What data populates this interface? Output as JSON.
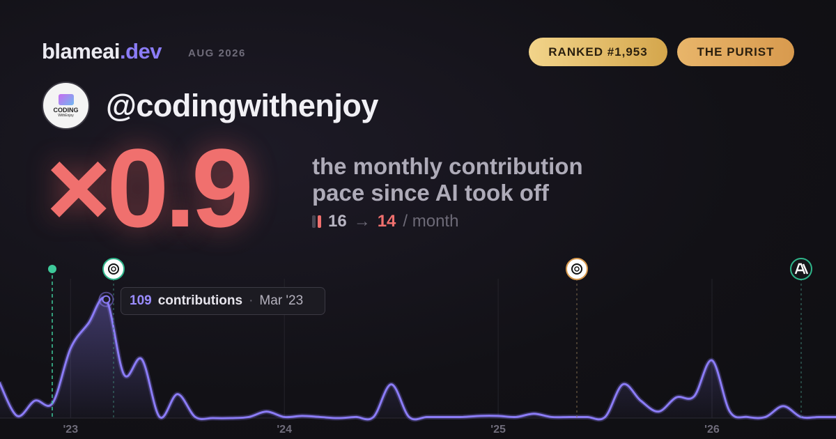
{
  "header": {
    "brand": "blameai",
    "brand_suffix": ".dev",
    "date": "AUG 2026",
    "badges": [
      "RANKED #1,953",
      "THE PURIST"
    ]
  },
  "profile": {
    "handle": "@codingwithenjoy",
    "avatar_text": [
      "CODING",
      "WithEnjoy"
    ]
  },
  "headline": {
    "multiplier": "×0.9",
    "description": [
      "the monthly contribution",
      "pace since AI took off"
    ],
    "before": "16",
    "arrow": "→",
    "after": "14",
    "unit": "/ month"
  },
  "tooltip": {
    "unit": "contributions",
    "separator": "·",
    "label": "Mar '23"
  },
  "chart_data": {
    "type": "line",
    "categories": [
      null,
      null,
      null,
      null,
      "'23",
      null,
      null,
      null,
      null,
      null,
      null,
      null,
      null,
      null,
      null,
      null,
      "'24",
      null,
      null,
      null,
      null,
      null,
      null,
      null,
      null,
      null,
      null,
      null,
      "'25",
      null,
      null,
      null,
      null,
      null,
      null,
      null,
      null,
      null,
      null,
      null,
      "'26",
      null,
      null,
      null,
      null,
      null,
      null,
      null
    ],
    "series": [
      {
        "name": "contributions",
        "color": "#8b7cf6",
        "values": [
          33,
          2,
          16,
          14,
          64,
          87,
          109,
          40,
          54,
          1,
          22,
          1,
          0,
          0,
          1,
          6,
          1,
          2,
          1,
          0,
          1,
          1,
          31,
          1,
          1,
          1,
          1,
          2,
          2,
          1,
          4,
          1,
          1,
          1,
          1,
          31,
          16,
          6,
          19,
          20,
          53,
          6,
          1,
          1,
          11,
          1,
          1,
          1
        ]
      }
    ],
    "ylim": [
      0,
      128
    ],
    "grid": true
  }
}
